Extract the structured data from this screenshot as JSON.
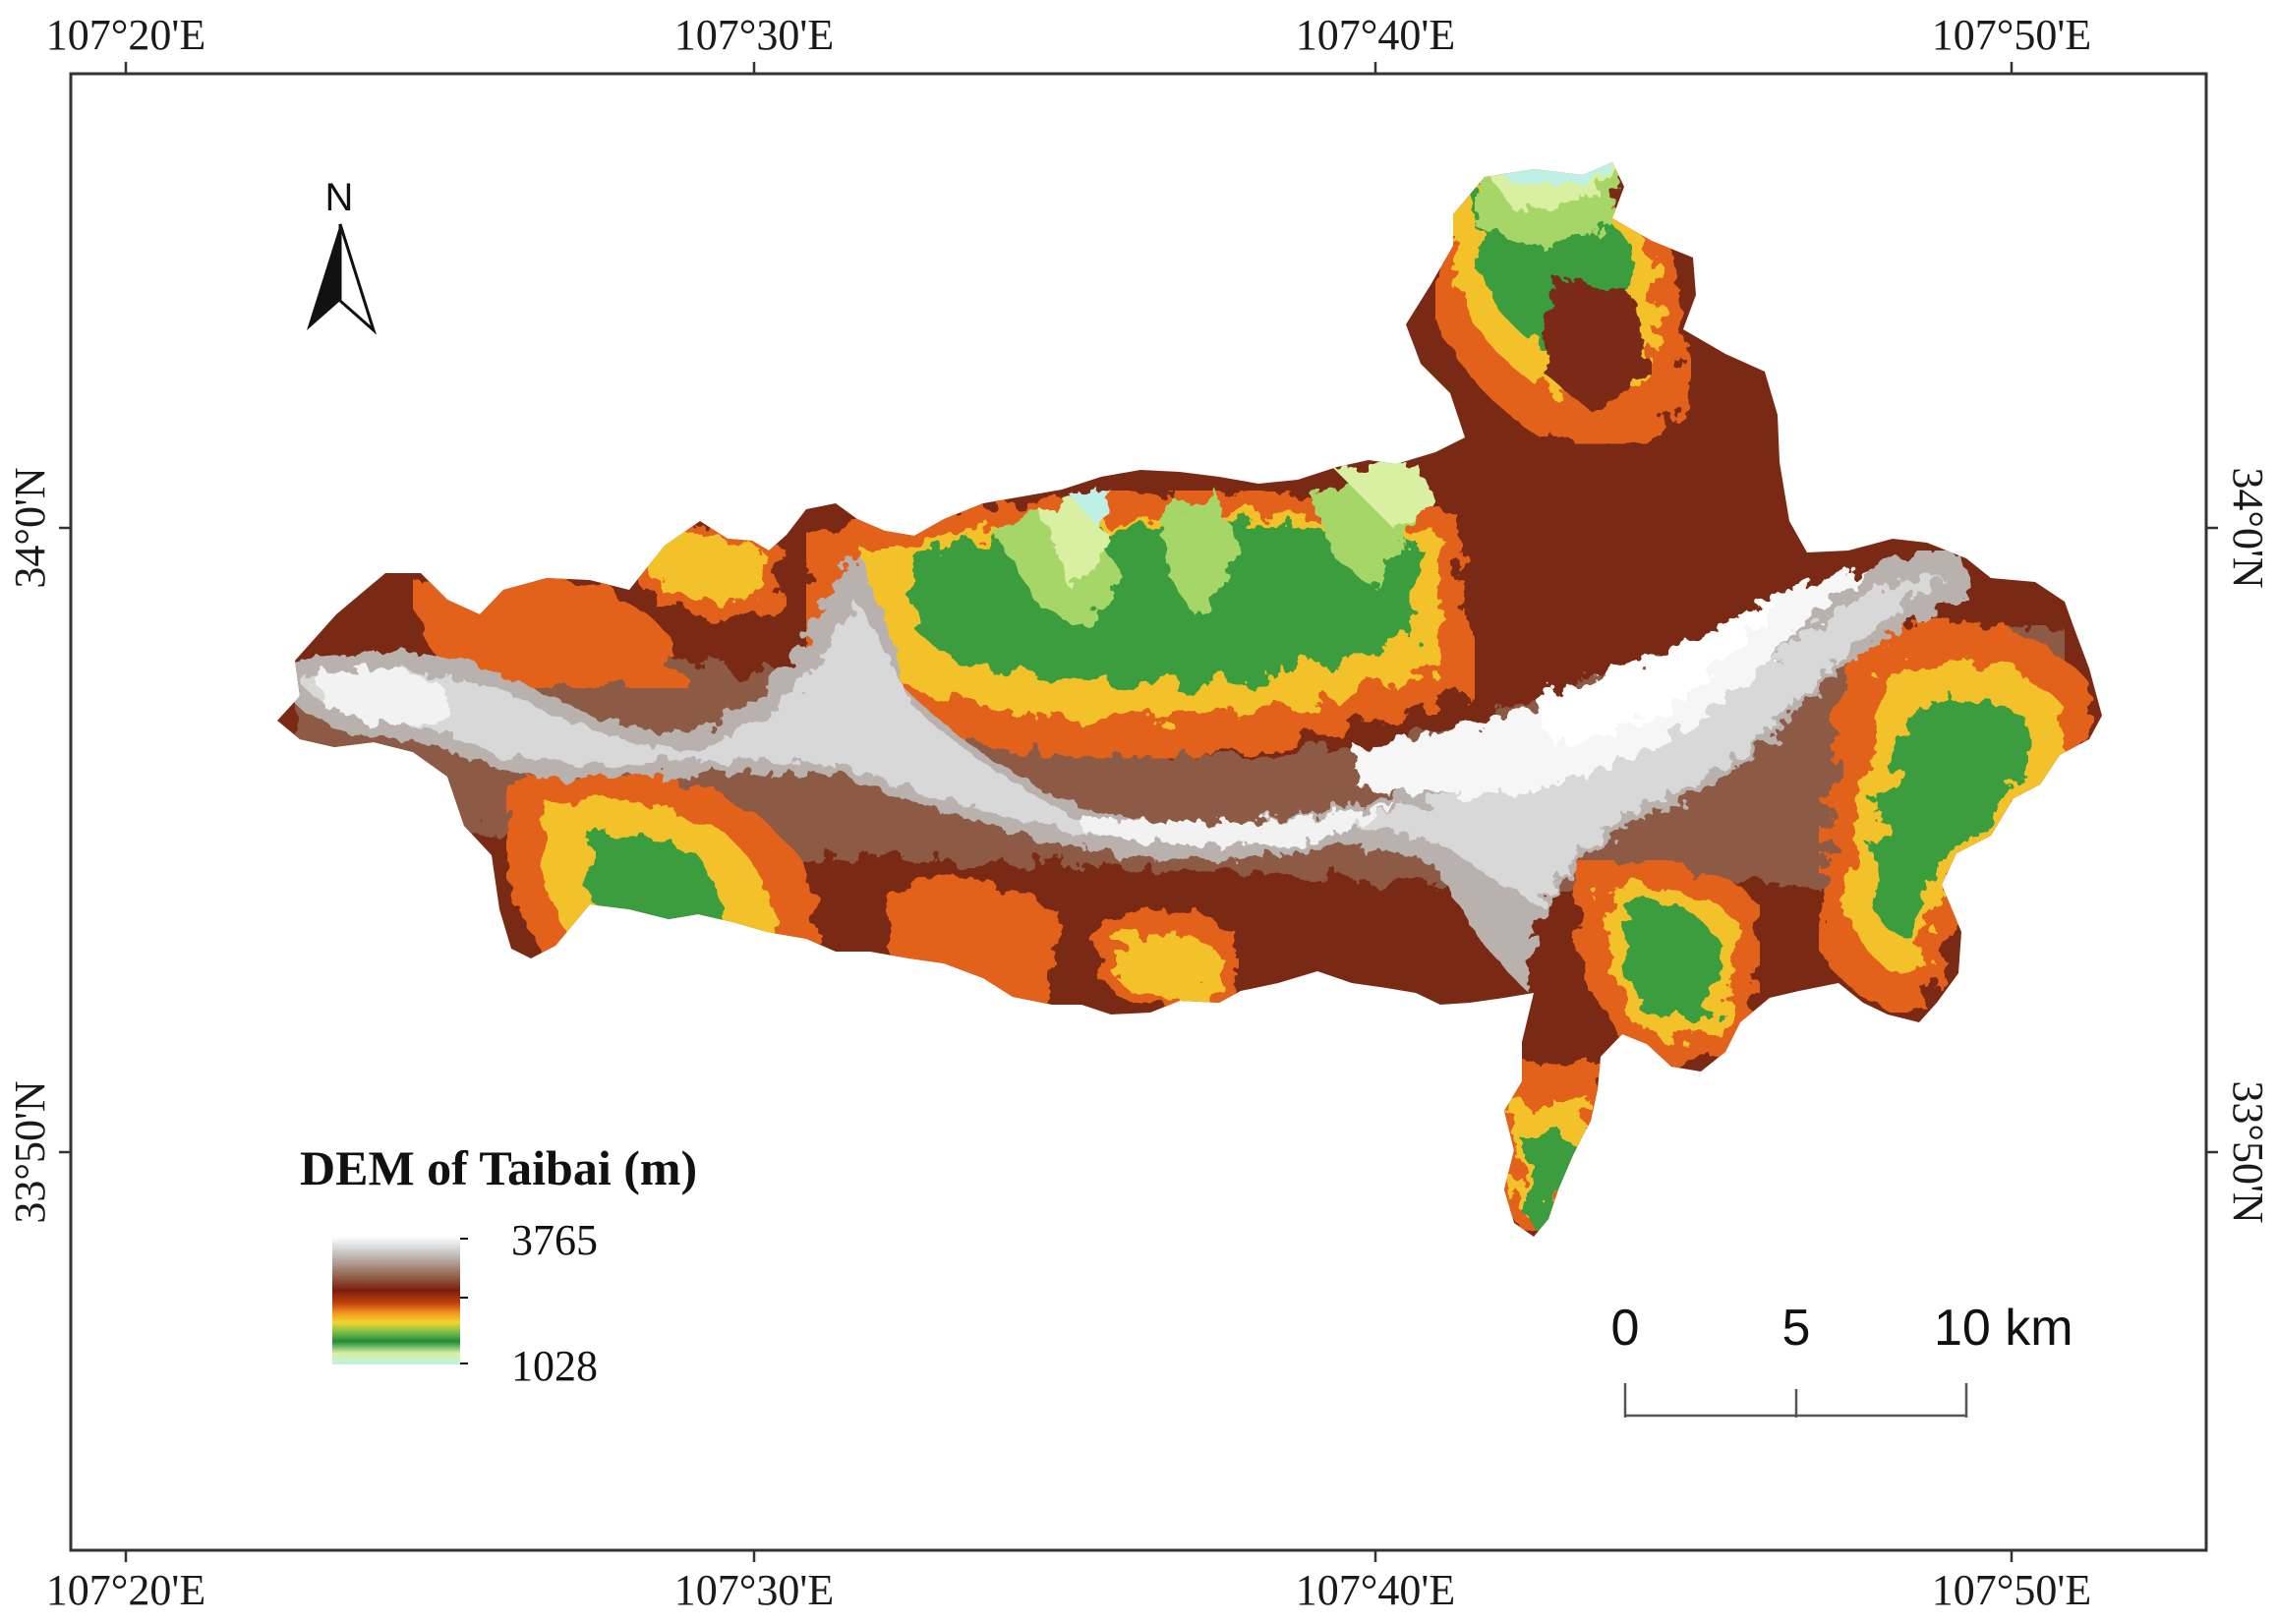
{
  "map": {
    "top_labels": [
      "107°20'E",
      "107°30'E",
      "107°40'E",
      "107°50'E"
    ],
    "bottom_labels": [
      "107°20'E",
      "107°30'E",
      "107°40'E",
      "107°50'E"
    ],
    "left_labels": [
      "34°0'N",
      "33°50'N"
    ],
    "right_labels": [
      "34°0'N",
      "33°50'N"
    ]
  },
  "north_arrow": {
    "label": "N"
  },
  "legend": {
    "title": "DEM of Taibai (m)",
    "max_value": "3765",
    "min_value": "1028",
    "color_ramp_top_to_bottom": [
      "#ffffff",
      "#c8c8c8",
      "#9a7a66",
      "#7a1e0c",
      "#b7330e",
      "#f08a1a",
      "#f3d52e",
      "#7cbd3f",
      "#1f8a3a",
      "#cde9a0",
      "#bff0e6"
    ]
  },
  "scale_bar": {
    "labels": [
      "0",
      "5",
      "10 km"
    ]
  },
  "colors": {
    "frame": "#333333",
    "dark_brown": "#7a1e0c",
    "brown": "#8f5a44",
    "orange": "#f08a1a",
    "yellow": "#f3d52e",
    "green": "#2f9a3e",
    "light_green": "#cde9a0",
    "cyan": "#bff0e6",
    "grey": "#c9c9c9",
    "white": "#ffffff"
  }
}
